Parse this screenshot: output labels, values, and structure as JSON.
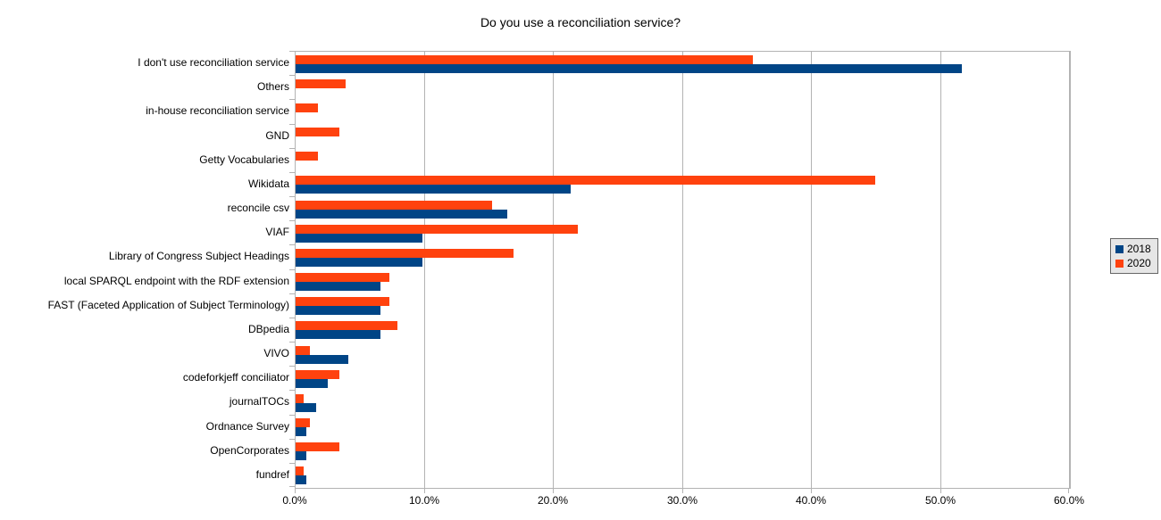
{
  "chart_data": {
    "type": "bar",
    "orientation": "horizontal",
    "title": "Do you use a reconciliation service?",
    "categories": [
      "I don't use reconciliation service",
      "Others",
      "in-house reconciliation service",
      "GND",
      "Getty Vocabularies",
      "Wikidata",
      "reconcile csv",
      "VIAF",
      "Library of Congress Subject Headings",
      "local SPARQL endpoint with the RDF extension",
      "FAST (Faceted Application of Subject Terminology)",
      "DBpedia",
      "VIVO",
      "codeforkjeff conciliator",
      "journalTOCs",
      "Ordnance Survey",
      "OpenCorporates",
      "fundref"
    ],
    "series": [
      {
        "name": "2018",
        "color": "#004586",
        "values": [
          51.6,
          0,
          0,
          0,
          0,
          21.3,
          16.4,
          9.8,
          9.8,
          6.6,
          6.6,
          6.6,
          4.1,
          2.5,
          1.6,
          0.8,
          0.8,
          0.8
        ]
      },
      {
        "name": "2020",
        "color": "#ff420e",
        "values": [
          35.4,
          3.9,
          1.7,
          3.4,
          1.7,
          44.9,
          15.2,
          21.9,
          16.9,
          7.3,
          7.3,
          7.9,
          1.1,
          3.4,
          0.6,
          1.1,
          3.4,
          0.6
        ]
      }
    ],
    "xlim": [
      0,
      60
    ],
    "x_ticks": [
      "0.0%",
      "10.0%",
      "20.0%",
      "30.0%",
      "40.0%",
      "50.0%",
      "60.0%"
    ],
    "grid": "vertical-major",
    "legend_position": "right",
    "bar_group_order_top_to_bottom": [
      "2020",
      "2018"
    ]
  }
}
